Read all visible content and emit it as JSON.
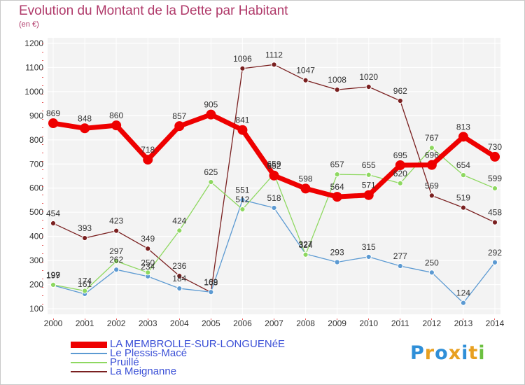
{
  "title": "Evolution du Montant de la Dette par Habitant",
  "subtitle": "(en €)",
  "logo": {
    "letters": [
      {
        "ch": "P",
        "color": "#2f8fd8"
      },
      {
        "ch": "r",
        "color": "#e8a020"
      },
      {
        "ch": "o",
        "color": "#2f8fd8"
      },
      {
        "ch": "x",
        "color": "#e8a020"
      },
      {
        "ch": "i",
        "color": "#2f8fd8"
      },
      {
        "ch": "t",
        "color": "#e8a020"
      },
      {
        "ch": "i",
        "color": "#6cc040"
      }
    ]
  },
  "chart_data": {
    "type": "line",
    "title": "Evolution du Montant de la Dette par Habitant",
    "subtitle": "(en €)",
    "x": [
      "2000",
      "2001",
      "2002",
      "2003",
      "2004",
      "2005",
      "2006",
      "2007",
      "2008",
      "2009",
      "2010",
      "2011",
      "2012",
      "2013",
      "2014"
    ],
    "ylim": [
      100,
      1200
    ],
    "yticks": [
      "100",
      "200",
      "300",
      "400",
      "500",
      "600",
      "700",
      "800",
      "900",
      "1000",
      "1100",
      "1200"
    ],
    "grid": true,
    "legend_position": "bottom",
    "series": [
      {
        "name": "LA MEMBROLLE-SUR-LONGUENéE",
        "color": "#ee0000",
        "values": [
          869,
          848,
          860,
          718,
          857,
          905,
          841,
          652,
          598,
          564,
          571,
          695,
          696,
          813,
          730
        ],
        "labels": [
          "869",
          "848",
          "860",
          "718",
          "857",
          "905",
          "841",
          "652",
          "598",
          "564",
          "571",
          "695",
          "696",
          "813",
          "730"
        ]
      },
      {
        "name": "Le Plessis-Macé",
        "color": "#5c9ad2",
        "values": [
          197,
          161,
          262,
          234,
          184,
          169,
          551,
          518,
          327,
          293,
          315,
          277,
          250,
          124,
          292
        ],
        "labels": [
          "197",
          "161",
          "262",
          "234",
          "184",
          "169",
          "551",
          "518",
          "327",
          "293",
          "315",
          "277",
          "250",
          "124",
          "292"
        ]
      },
      {
        "name": "Pruillé",
        "color": "#8ed860",
        "values": [
          199,
          174,
          297,
          250,
          424,
          625,
          512,
          659,
          324,
          657,
          655,
          620,
          767,
          654,
          599
        ],
        "labels": [
          "199",
          "174",
          "297",
          "250",
          "424",
          "625",
          "512",
          "659",
          "324",
          "657",
          "655",
          "620",
          "767",
          "654",
          "599"
        ]
      },
      {
        "name": "La Meignanne",
        "color": "#7a2020",
        "values": [
          454,
          393,
          423,
          349,
          236,
          168,
          1096,
          1112,
          1047,
          1008,
          1020,
          962,
          569,
          519,
          458
        ],
        "labels": [
          "454",
          "393",
          "423",
          "349",
          "236",
          "168",
          "1096",
          "1112",
          "1047",
          "1008",
          "1020",
          "962",
          "569",
          "519",
          "458"
        ]
      }
    ]
  }
}
